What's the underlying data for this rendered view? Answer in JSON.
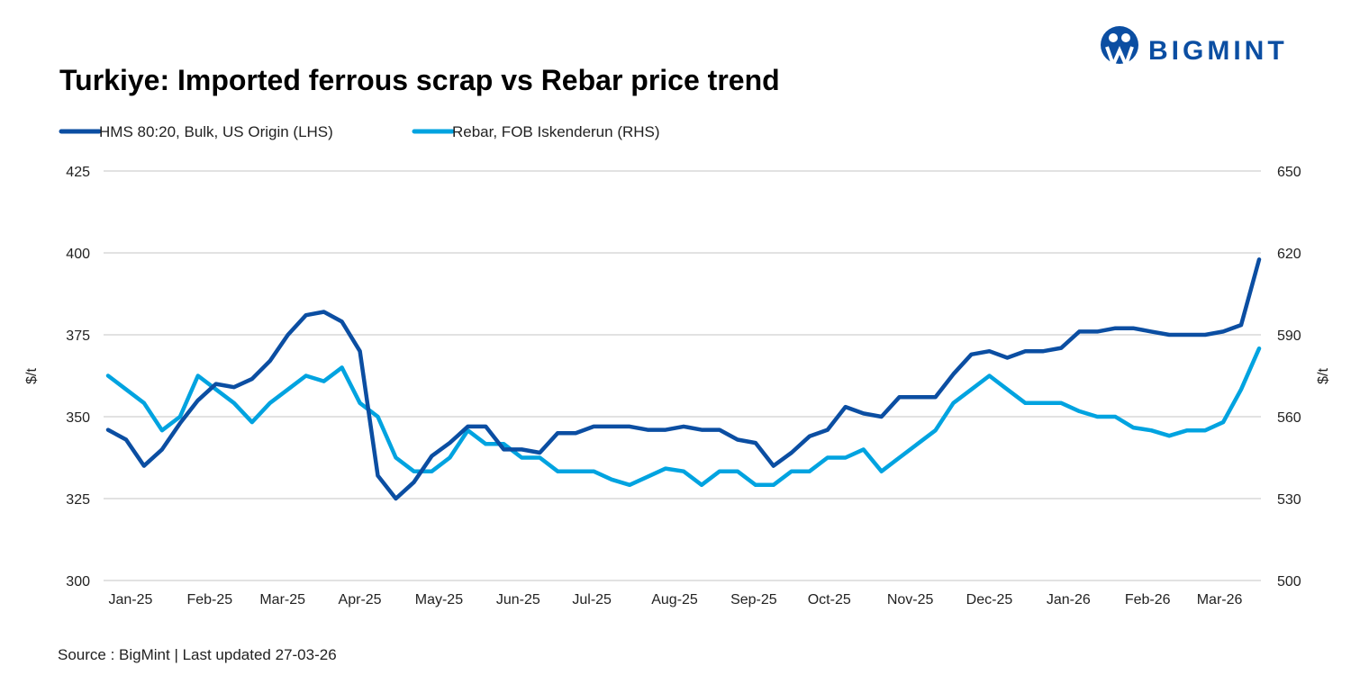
{
  "brand": {
    "name": "BIGMINT",
    "color": "#0b4ea2"
  },
  "chart_data": {
    "type": "line",
    "title": "Turkiye: Imported ferrous scrap vs Rebar price trend",
    "source": "Source : BigMint | Last updated 27-03-26",
    "ylabel_left": "$/t",
    "ylabel_right": "$/t",
    "ylim_left": [
      300,
      425
    ],
    "ylim_right": [
      500,
      650
    ],
    "yticks_left": [
      "300",
      "325",
      "350",
      "375",
      "400",
      "425"
    ],
    "yticks_right": [
      "500",
      "530",
      "560",
      "590",
      "620",
      "650"
    ],
    "x_tick_labels": [
      "Jan-25",
      "Feb-25",
      "Mar-25",
      "Apr-25",
      "May-25",
      "Jun-25",
      "Jul-25",
      "Aug-25",
      "Sep-25",
      "Oct-25",
      "Nov-25",
      "Dec-25",
      "Jan-26",
      "Feb-26",
      "Mar-26"
    ],
    "x_tick_positions": [
      1.25,
      5.65,
      9.7,
      14,
      18.4,
      22.8,
      26.9,
      31.5,
      35.9,
      40.1,
      44.6,
      49,
      53.4,
      57.8,
      61.8
    ],
    "grid": true,
    "legend_position": "top-left",
    "series": [
      {
        "name": "HMS 80:20, Bulk, US Origin (LHS)",
        "axis": "left",
        "color": "#0b4ea2",
        "values": [
          346,
          343,
          335,
          340,
          348,
          355,
          360,
          359,
          361.5,
          367,
          375,
          381,
          382,
          379,
          370,
          332,
          325,
          330,
          338,
          342,
          347,
          347,
          340,
          340,
          339,
          345,
          345,
          347,
          347,
          347,
          346,
          346,
          347,
          346,
          346,
          343,
          342,
          335,
          339,
          344,
          346,
          353,
          351,
          350,
          356,
          356,
          356,
          363,
          369,
          370,
          368,
          370,
          370,
          371,
          376,
          376,
          377,
          377,
          376,
          375,
          375,
          375,
          376,
          378,
          398
        ]
      },
      {
        "name": "Rebar, FOB Iskenderun (RHS)",
        "axis": "right",
        "color": "#00a3e0",
        "values": [
          575,
          570,
          565,
          555,
          560,
          575,
          570,
          565,
          558,
          565,
          570,
          575,
          573,
          578,
          565,
          560,
          545,
          540,
          540,
          545,
          555,
          550,
          550,
          545,
          545,
          540,
          540,
          540,
          537,
          535,
          538,
          541,
          540,
          535,
          540,
          540,
          535,
          535,
          540,
          540,
          545,
          545,
          548,
          540,
          545,
          550,
          555,
          565,
          570,
          575,
          570,
          565,
          565,
          565,
          562,
          560,
          560,
          556,
          555,
          553,
          555,
          555,
          558,
          570,
          585
        ]
      }
    ]
  }
}
